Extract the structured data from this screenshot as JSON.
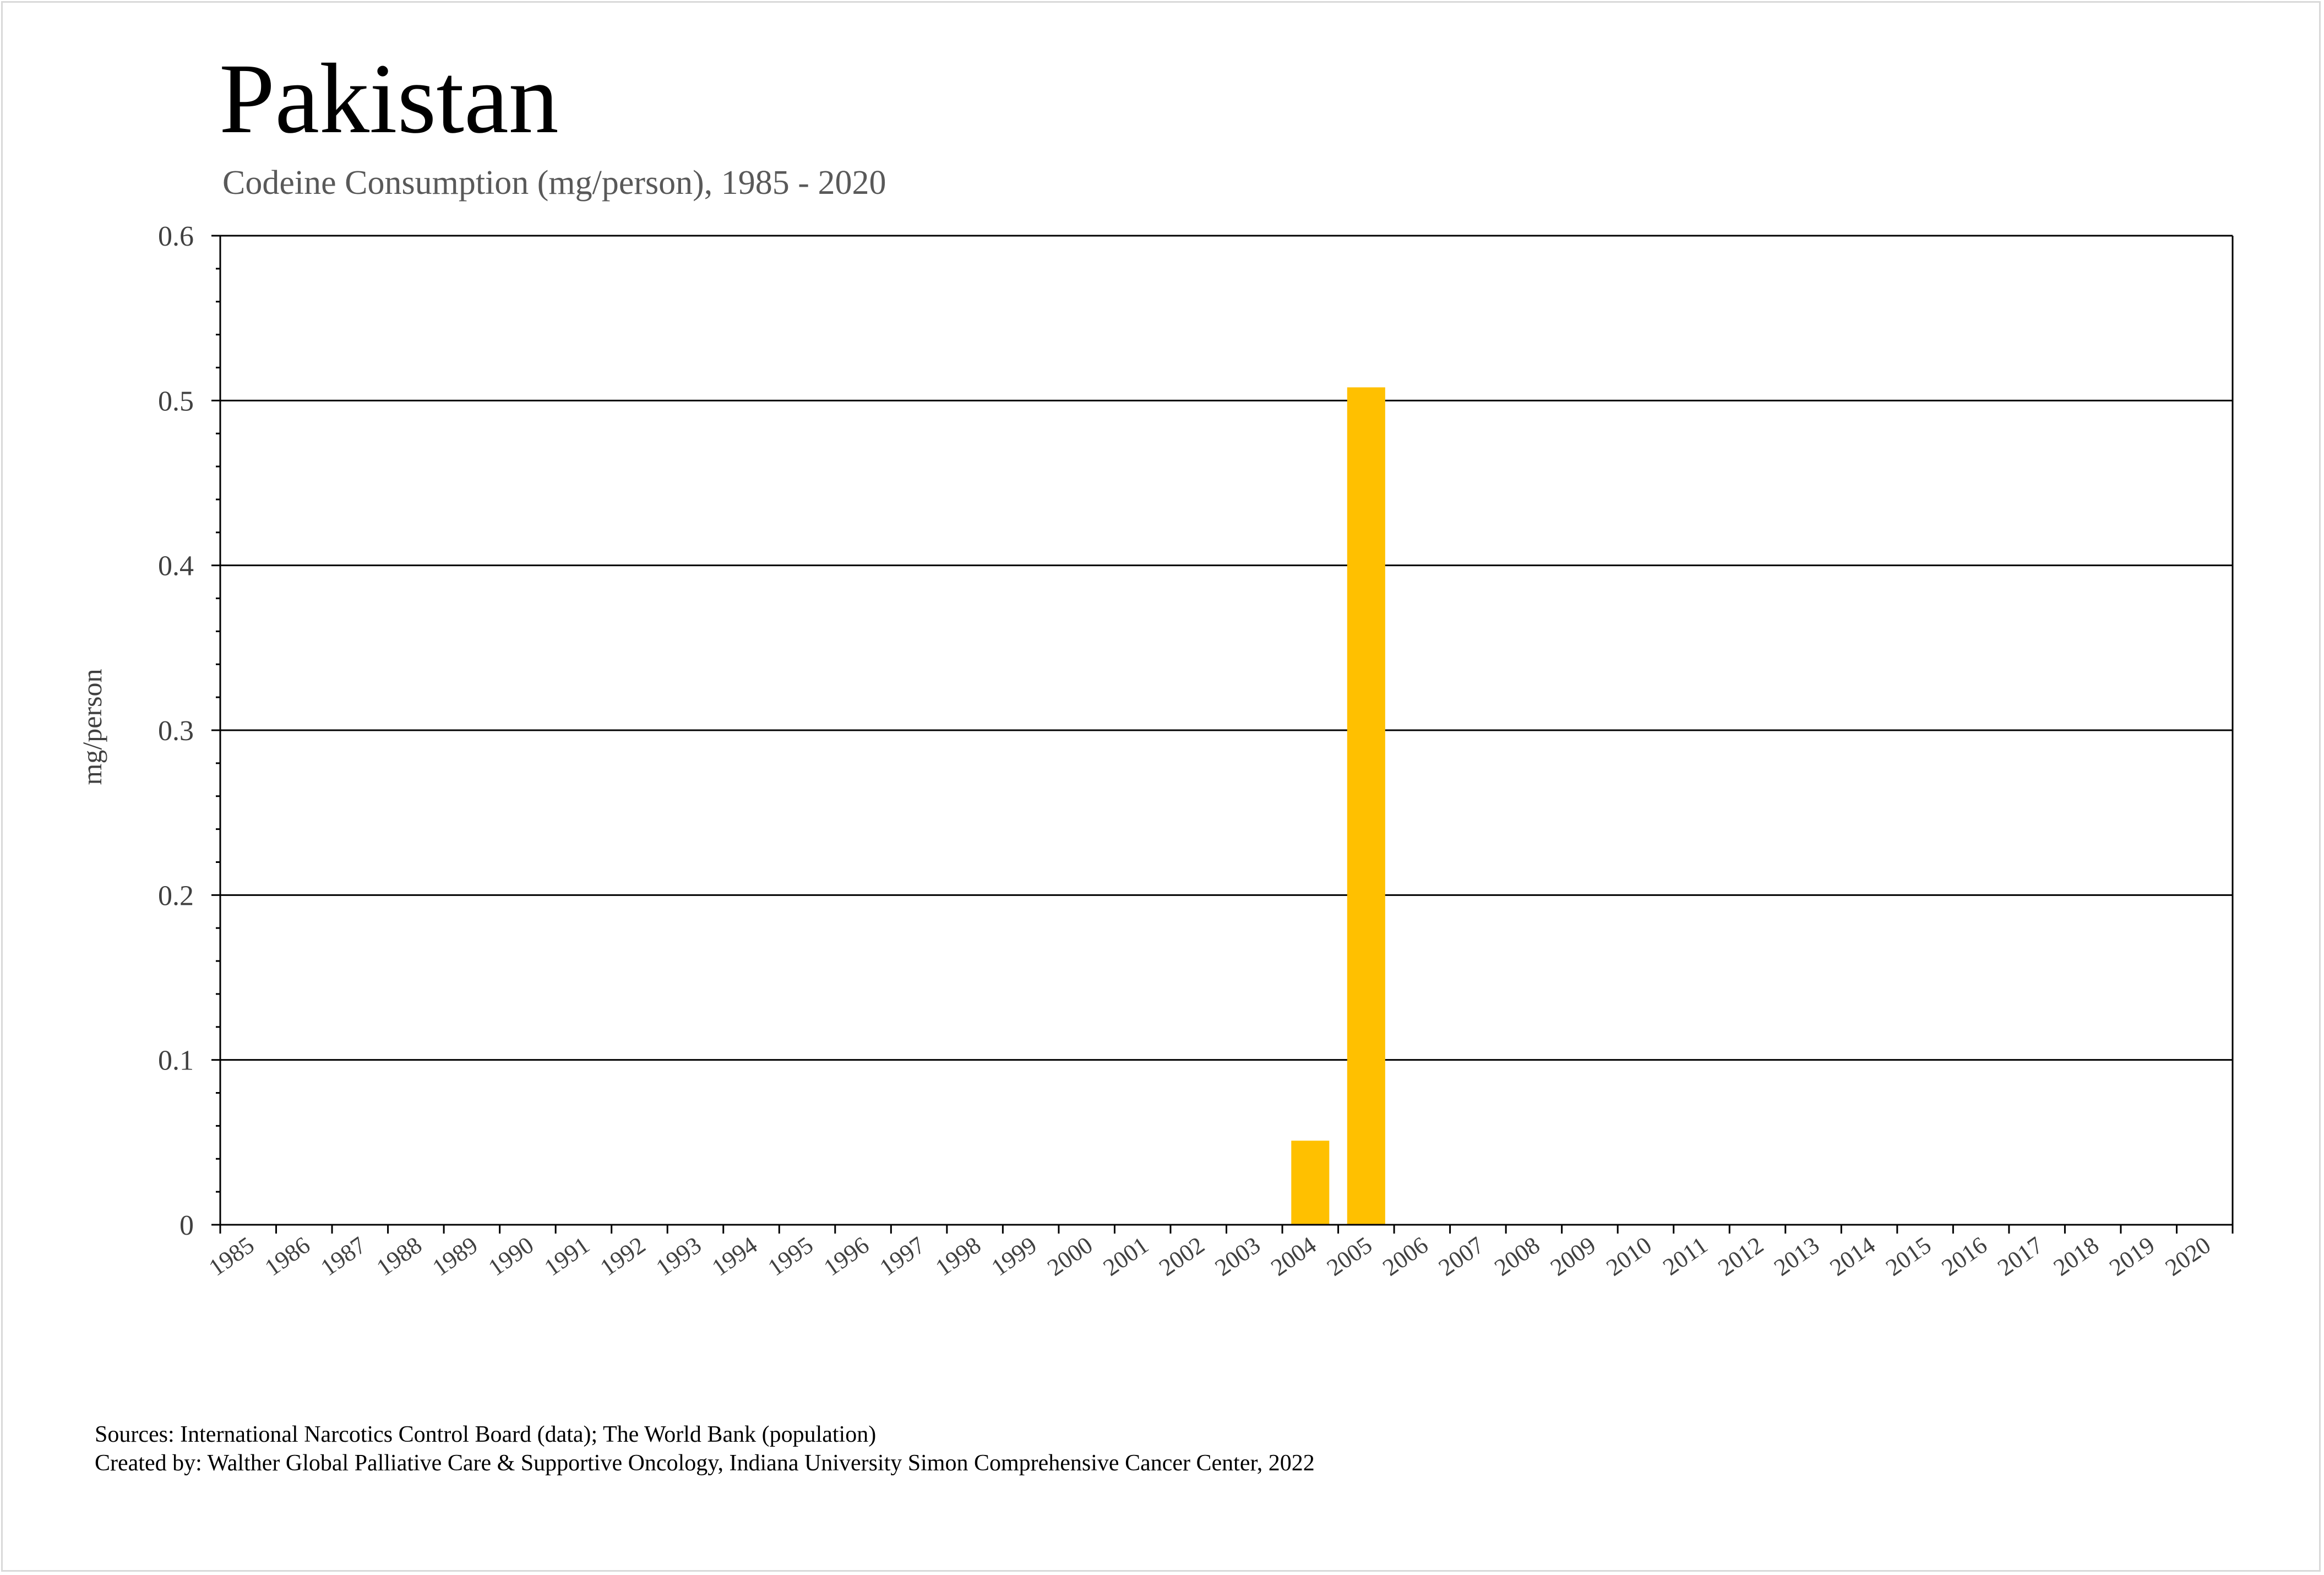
{
  "title": "Pakistan",
  "subtitle": "Codeine Consumption (mg/person), 1985 - 2020",
  "footer": {
    "sources": "Sources: International Narcotics Control Board (data); The World Bank (population)",
    "created_by": "Created by: Walther Global Palliative Care & Supportive Oncology, Indiana University Simon Comprehensive Cancer Center, 2022"
  },
  "chart_data": {
    "type": "bar",
    "title": "Pakistan",
    "subtitle": "Codeine Consumption (mg/person), 1985 - 2020",
    "xlabel": "",
    "ylabel": "mg/person",
    "ylim": [
      0,
      0.6
    ],
    "yticks": [
      "0",
      "0.1",
      "0.2",
      "0.3",
      "0.4",
      "0.5",
      "0.6"
    ],
    "grid": true,
    "bar_color": "#FFC000",
    "categories": [
      "1985",
      "1986",
      "1987",
      "1988",
      "1989",
      "1990",
      "1991",
      "1992",
      "1993",
      "1994",
      "1995",
      "1996",
      "1997",
      "1998",
      "1999",
      "2000",
      "2001",
      "2002",
      "2003",
      "2004",
      "2005",
      "2006",
      "2007",
      "2008",
      "2009",
      "2010",
      "2011",
      "2012",
      "2013",
      "2014",
      "2015",
      "2016",
      "2017",
      "2018",
      "2019",
      "2020"
    ],
    "values": [
      0,
      0,
      0,
      0,
      0,
      0,
      0,
      0,
      0,
      0,
      0,
      0,
      0,
      0,
      0,
      0,
      0,
      0,
      0,
      0.051,
      0.508,
      0,
      0,
      0,
      0,
      0,
      0,
      0,
      0,
      0,
      0,
      0,
      0,
      0,
      0,
      0
    ]
  }
}
